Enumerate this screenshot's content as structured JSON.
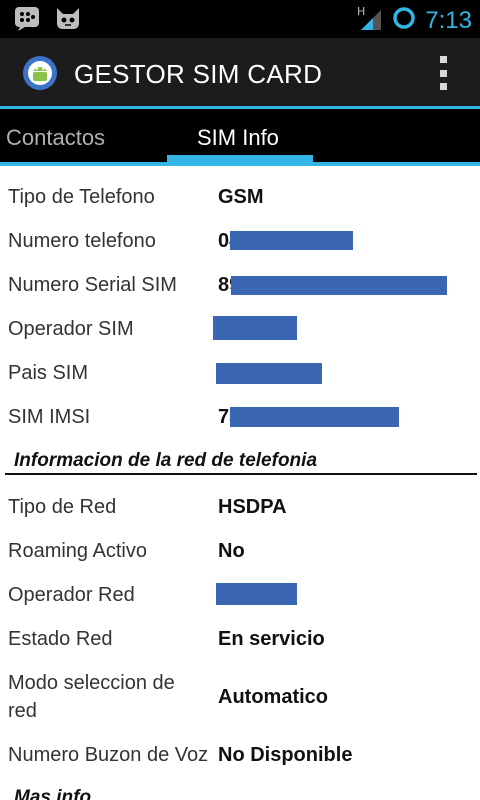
{
  "status_bar": {
    "left_icons": [
      "bbm-icon",
      "cat-face-icon"
    ],
    "network_type": "H",
    "time": "7:13"
  },
  "action_bar": {
    "title": "GESTOR SIM CARD"
  },
  "tabs": [
    {
      "label": "Contactos",
      "selected": false
    },
    {
      "label": "SIM Info",
      "selected": true
    }
  ],
  "sim_info": {
    "tipo_telefono": {
      "label": "Tipo de Telefono",
      "value": "GSM"
    },
    "numero_telefono": {
      "label": "Numero telefono",
      "value": "04"
    },
    "numero_serial": {
      "label": "Numero Serial SIM",
      "value": "89"
    },
    "operador_sim": {
      "label": "Operador SIM",
      "value": ""
    },
    "pais_sim": {
      "label": "Pais SIM",
      "value": ""
    },
    "sim_imsi": {
      "label": "SIM IMSI",
      "value": "73"
    }
  },
  "network_section": {
    "title": "Informacion de la red de telefonia",
    "tipo_red": {
      "label": "Tipo de Red",
      "value": "HSDPA"
    },
    "roaming": {
      "label": "Roaming Activo",
      "value": "No"
    },
    "operador_red": {
      "label": "Operador Red",
      "value": ""
    },
    "estado_red": {
      "label": "Estado Red",
      "value": "En servicio"
    },
    "modo_seleccion": {
      "label_line1": "Modo seleccion de",
      "label_line2": "red",
      "value": "Automatico"
    },
    "buzon_voz": {
      "label": "Numero Buzon de Voz",
      "value": "No Disponible"
    }
  },
  "more_section": {
    "title": "Mas info"
  },
  "colors": {
    "accent": "#33b5e5",
    "redaction": "#3a66b3"
  }
}
